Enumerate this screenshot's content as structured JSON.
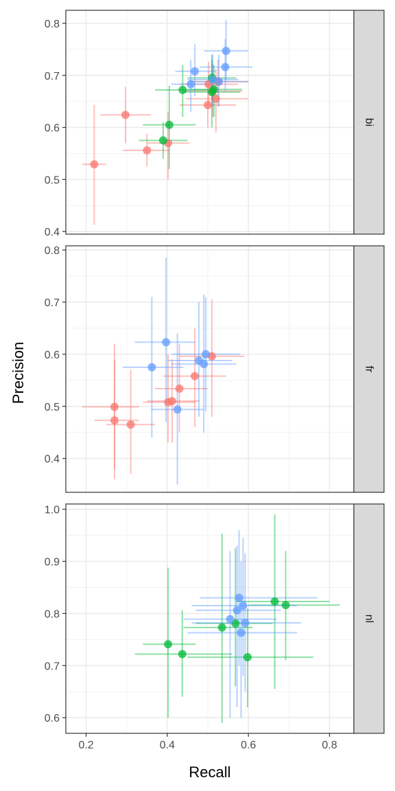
{
  "chart_data": {
    "type": "scatter",
    "title": "",
    "xlabel": "Recall",
    "ylabel": "Precision",
    "xlim": [
      0.15,
      0.86
    ],
    "x_ticks": [
      "0.2",
      "0.4",
      "0.6",
      "0.8"
    ],
    "grid": true,
    "facet": "rows",
    "legend": "none",
    "series_colors": {
      "red": "#F8766D",
      "green": "#00BA38",
      "blue": "#619CFF"
    },
    "panels": [
      {
        "strip": "bi",
        "ylim": [
          0.395,
          0.825
        ],
        "y_ticks": [
          "0.4",
          "0.5",
          "0.6",
          "0.7",
          "0.8"
        ],
        "points": [
          {
            "group": "red",
            "x": 0.22,
            "y": 0.529,
            "xerr": [
              0.19,
              0.25
            ],
            "yerr": [
              0.413,
              0.643
            ]
          },
          {
            "group": "red",
            "x": 0.297,
            "y": 0.624,
            "xerr": [
              0.235,
              0.36
            ],
            "yerr": [
              0.57,
              0.678
            ]
          },
          {
            "group": "red",
            "x": 0.35,
            "y": 0.556,
            "xerr": [
              0.29,
              0.405
            ],
            "yerr": [
              0.525,
              0.588
            ]
          },
          {
            "group": "red",
            "x": 0.402,
            "y": 0.57,
            "xerr": [
              0.35,
              0.455
            ],
            "yerr": [
              0.5,
              0.63
            ]
          },
          {
            "group": "red",
            "x": 0.5,
            "y": 0.643,
            "xerr": [
              0.43,
              0.57
            ],
            "yerr": [
              0.6,
              0.69
            ]
          },
          {
            "group": "red",
            "x": 0.502,
            "y": 0.683,
            "xerr": [
              0.43,
              0.575
            ],
            "yerr": [
              0.64,
              0.726
            ]
          },
          {
            "group": "red",
            "x": 0.512,
            "y": 0.67,
            "xerr": [
              0.44,
              0.585
            ],
            "yerr": [
              0.62,
              0.722
            ]
          },
          {
            "group": "red",
            "x": 0.52,
            "y": 0.655,
            "xerr": [
              0.445,
              0.6
            ],
            "yerr": [
              0.59,
              0.712
            ]
          },
          {
            "group": "red",
            "x": 0.525,
            "y": 0.688,
            "xerr": [
              0.455,
              0.6
            ],
            "yerr": [
              0.64,
              0.73
            ]
          },
          {
            "group": "green",
            "x": 0.39,
            "y": 0.575,
            "xerr": [
              0.33,
              0.45
            ],
            "yerr": [
              0.54,
              0.61
            ]
          },
          {
            "group": "green",
            "x": 0.405,
            "y": 0.605,
            "xerr": [
              0.34,
              0.47
            ],
            "yerr": [
              0.52,
              0.68
            ]
          },
          {
            "group": "green",
            "x": 0.438,
            "y": 0.672,
            "xerr": [
              0.37,
              0.5
            ],
            "yerr": [
              0.62,
              0.72
            ]
          },
          {
            "group": "green",
            "x": 0.51,
            "y": 0.668,
            "xerr": [
              0.44,
              0.58
            ],
            "yerr": [
              0.6,
              0.73
            ]
          },
          {
            "group": "green",
            "x": 0.51,
            "y": 0.695,
            "xerr": [
              0.45,
              0.57
            ],
            "yerr": [
              0.65,
              0.74
            ]
          },
          {
            "group": "green",
            "x": 0.515,
            "y": 0.673,
            "xerr": [
              0.45,
              0.585
            ],
            "yerr": [
              0.62,
              0.72
            ]
          },
          {
            "group": "blue",
            "x": 0.458,
            "y": 0.683,
            "xerr": [
              0.41,
              0.51
            ],
            "yerr": [
              0.63,
              0.73
            ]
          },
          {
            "group": "blue",
            "x": 0.468,
            "y": 0.708,
            "xerr": [
              0.42,
              0.52
            ],
            "yerr": [
              0.66,
              0.76
            ]
          },
          {
            "group": "blue",
            "x": 0.512,
            "y": 0.692,
            "xerr": [
              0.45,
              0.575
            ],
            "yerr": [
              0.64,
              0.74
            ]
          },
          {
            "group": "blue",
            "x": 0.527,
            "y": 0.688,
            "xerr": [
              0.46,
              0.6
            ],
            "yerr": [
              0.64,
              0.74
            ]
          },
          {
            "group": "blue",
            "x": 0.543,
            "y": 0.716,
            "xerr": [
              0.48,
              0.61
            ],
            "yerr": [
              0.67,
              0.77
            ]
          },
          {
            "group": "blue",
            "x": 0.545,
            "y": 0.747,
            "xerr": [
              0.49,
              0.6
            ],
            "yerr": [
              0.69,
              0.806
            ]
          }
        ]
      },
      {
        "strip": "fr",
        "ylim": [
          0.335,
          0.808
        ],
        "y_ticks": [
          "0.4",
          "0.5",
          "0.6",
          "0.7",
          "0.8"
        ],
        "points": [
          {
            "group": "red",
            "x": 0.27,
            "y": 0.499,
            "xerr": [
              0.19,
              0.33
            ],
            "yerr": [
              0.38,
              0.62
            ]
          },
          {
            "group": "red",
            "x": 0.27,
            "y": 0.473,
            "xerr": [
              0.22,
              0.33
            ],
            "yerr": [
              0.36,
              0.59
            ]
          },
          {
            "group": "red",
            "x": 0.31,
            "y": 0.465,
            "xerr": [
              0.25,
              0.37
            ],
            "yerr": [
              0.37,
              0.57
            ]
          },
          {
            "group": "red",
            "x": 0.402,
            "y": 0.508,
            "xerr": [
              0.34,
              0.47
            ],
            "yerr": [
              0.43,
              0.6
            ]
          },
          {
            "group": "red",
            "x": 0.412,
            "y": 0.51,
            "xerr": [
              0.35,
              0.48
            ],
            "yerr": [
              0.43,
              0.59
            ]
          },
          {
            "group": "red",
            "x": 0.43,
            "y": 0.534,
            "xerr": [
              0.37,
              0.5
            ],
            "yerr": [
              0.45,
              0.62
            ]
          },
          {
            "group": "red",
            "x": 0.468,
            "y": 0.558,
            "xerr": [
              0.39,
              0.545
            ],
            "yerr": [
              0.46,
              0.65
            ]
          },
          {
            "group": "red",
            "x": 0.51,
            "y": 0.596,
            "xerr": [
              0.43,
              0.59
            ],
            "yerr": [
              0.48,
              0.705
            ]
          },
          {
            "group": "blue",
            "x": 0.362,
            "y": 0.575,
            "xerr": [
              0.29,
              0.44
            ],
            "yerr": [
              0.44,
              0.71
            ]
          },
          {
            "group": "blue",
            "x": 0.397,
            "y": 0.623,
            "xerr": [
              0.32,
              0.47
            ],
            "yerr": [
              0.47,
              0.785
            ]
          },
          {
            "group": "blue",
            "x": 0.425,
            "y": 0.494,
            "xerr": [
              0.36,
              0.49
            ],
            "yerr": [
              0.35,
              0.64
            ]
          },
          {
            "group": "blue",
            "x": 0.478,
            "y": 0.588,
            "xerr": [
              0.4,
              0.56
            ],
            "yerr": [
              0.48,
              0.7
            ]
          },
          {
            "group": "blue",
            "x": 0.49,
            "y": 0.581,
            "xerr": [
              0.41,
              0.57
            ],
            "yerr": [
              0.45,
              0.715
            ]
          },
          {
            "group": "blue",
            "x": 0.495,
            "y": 0.6,
            "xerr": [
              0.41,
              0.58
            ],
            "yerr": [
              0.49,
              0.71
            ]
          }
        ]
      },
      {
        "strip": "nl",
        "ylim": [
          0.57,
          1.01
        ],
        "y_ticks": [
          "0.6",
          "0.7",
          "0.8",
          "0.9",
          "1.0"
        ],
        "points": [
          {
            "group": "green",
            "x": 0.402,
            "y": 0.741,
            "xerr": [
              0.34,
              0.47
            ],
            "yerr": [
              0.6,
              0.888
            ]
          },
          {
            "group": "green",
            "x": 0.437,
            "y": 0.722,
            "xerr": [
              0.32,
              0.56
            ],
            "yerr": [
              0.64,
              0.806
            ]
          },
          {
            "group": "green",
            "x": 0.535,
            "y": 0.773,
            "xerr": [
              0.44,
              0.61
            ],
            "yerr": [
              0.59,
              0.953
            ]
          },
          {
            "group": "green",
            "x": 0.568,
            "y": 0.781,
            "xerr": [
              0.47,
              0.66
            ],
            "yerr": [
              0.66,
              0.925
            ]
          },
          {
            "group": "green",
            "x": 0.598,
            "y": 0.716,
            "xerr": [
              0.45,
              0.76
            ],
            "yerr": [
              0.62,
              0.81
            ]
          },
          {
            "group": "green",
            "x": 0.665,
            "y": 0.823,
            "xerr": [
              0.57,
              0.8
            ],
            "yerr": [
              0.655,
              0.99
            ]
          },
          {
            "group": "green",
            "x": 0.692,
            "y": 0.816,
            "xerr": [
              0.6,
              0.825
            ],
            "yerr": [
              0.71,
              0.92
            ]
          },
          {
            "group": "blue",
            "x": 0.555,
            "y": 0.789,
            "xerr": [
              0.44,
              0.67
            ],
            "yerr": [
              0.6,
              0.92
            ]
          },
          {
            "group": "blue",
            "x": 0.572,
            "y": 0.806,
            "xerr": [
              0.47,
              0.68
            ],
            "yerr": [
              0.62,
              0.93
            ]
          },
          {
            "group": "blue",
            "x": 0.577,
            "y": 0.83,
            "xerr": [
              0.48,
              0.77
            ],
            "yerr": [
              0.7,
              0.96
            ]
          },
          {
            "group": "blue",
            "x": 0.582,
            "y": 0.763,
            "xerr": [
              0.45,
              0.72
            ],
            "yerr": [
              0.6,
              0.9
            ]
          },
          {
            "group": "blue",
            "x": 0.587,
            "y": 0.815,
            "xerr": [
              0.46,
              0.72
            ],
            "yerr": [
              0.68,
              0.945
            ]
          },
          {
            "group": "blue",
            "x": 0.592,
            "y": 0.782,
            "xerr": [
              0.46,
              0.73
            ],
            "yerr": [
              0.65,
              0.915
            ]
          }
        ]
      }
    ]
  }
}
